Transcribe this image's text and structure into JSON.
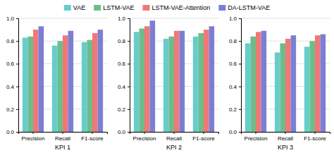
{
  "chart_data": [
    {
      "type": "bar",
      "xlabel": "KPI 1",
      "categories": [
        "Precision",
        "Recall",
        "F1-score"
      ],
      "series": [
        {
          "name": "VAE",
          "color": "#66CDCC",
          "values": [
            0.83,
            0.76,
            0.79
          ]
        },
        {
          "name": "LSTM-VAE",
          "color": "#6DBD8A",
          "values": [
            0.84,
            0.8,
            0.81
          ]
        },
        {
          "name": "LSTM-VAE-Attention",
          "color": "#F07878",
          "values": [
            0.9,
            0.85,
            0.87
          ]
        },
        {
          "name": "DA-LSTM-VAE",
          "color": "#7B7FD4",
          "values": [
            0.93,
            0.89,
            0.9
          ]
        }
      ],
      "ylim": [
        0.0,
        1.0
      ],
      "yticks": [
        {
          "value": 0.0,
          "label": "0.0"
        },
        0.2,
        0.4,
        0.6,
        0.8,
        {
          "value": 1.0,
          "label": "1.0"
        }
      ],
      "grid": true,
      "legend": "top"
    },
    {
      "type": "bar",
      "xlabel": "KPI 2",
      "categories": [
        "Precision",
        "Recall",
        "F1-score"
      ],
      "series": [
        {
          "name": "VAE",
          "color": "#66CDCC",
          "values": [
            0.88,
            0.82,
            0.84
          ]
        },
        {
          "name": "LSTM-VAE",
          "color": "#6DBD8A",
          "values": [
            0.91,
            0.84,
            0.87
          ]
        },
        {
          "name": "LSTM-VAE-Attention",
          "color": "#F07878",
          "values": [
            0.93,
            0.89,
            0.9
          ]
        },
        {
          "name": "DA-LSTM-VAE",
          "color": "#7B7FD4",
          "values": [
            0.98,
            0.89,
            0.93
          ]
        }
      ],
      "ylim": [
        0.0,
        1.0
      ],
      "yticks": [
        {
          "value": 0.0,
          "label": "0.0"
        },
        0.2,
        0.4,
        0.6,
        0.8,
        {
          "value": 1.0,
          "label": "1.0"
        }
      ],
      "grid": true
    },
    {
      "type": "bar",
      "xlabel": "KPI 3",
      "categories": [
        "Precision",
        "Recall",
        "F1-score"
      ],
      "series": [
        {
          "name": "VAE",
          "color": "#66CDCC",
          "values": [
            0.78,
            0.7,
            0.75
          ]
        },
        {
          "name": "LSTM-VAE",
          "color": "#6DBD8A",
          "values": [
            0.84,
            0.78,
            0.8
          ]
        },
        {
          "name": "LSTM-VAE-Attention",
          "color": "#F07878",
          "values": [
            0.88,
            0.82,
            0.85
          ]
        },
        {
          "name": "DA-LSTM-VAE",
          "color": "#7B7FD4",
          "values": [
            0.89,
            0.85,
            0.86
          ]
        }
      ],
      "ylim": [
        0.0,
        1.0
      ],
      "yticks": [
        {
          "value": 0.0,
          "label": "0.0"
        },
        0.2,
        0.4,
        0.6,
        0.8,
        {
          "value": 1.0,
          "label": "1.0"
        }
      ],
      "grid": true
    }
  ]
}
